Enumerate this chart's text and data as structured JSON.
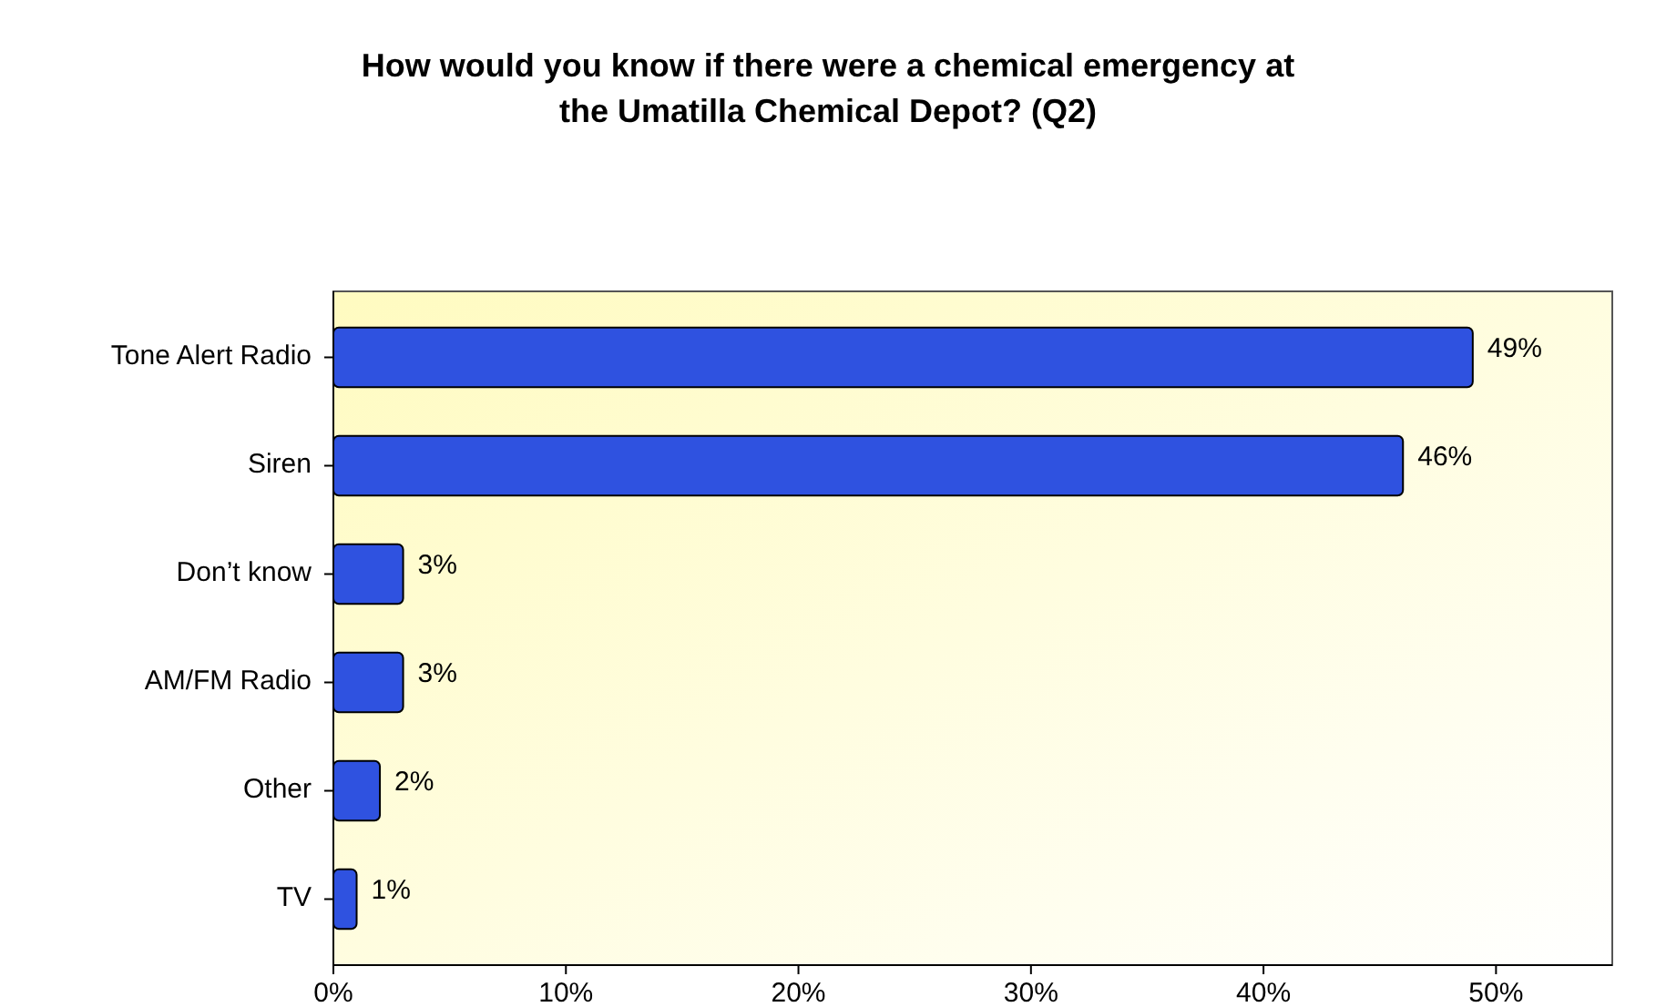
{
  "chart_data": {
    "type": "bar",
    "orientation": "horizontal",
    "title": "How would you know if there were a chemical emergency at the Umatilla Chemical Depot?  (Q2)",
    "categories": [
      "Tone Alert Radio",
      "Siren",
      "Don’t know",
      "AM/FM Radio",
      "Other",
      "TV"
    ],
    "values": [
      49,
      46,
      3,
      3,
      2,
      1
    ],
    "value_labels": [
      "49%",
      "46%",
      "3%",
      "3%",
      "2%",
      "1%"
    ],
    "color": "#2f52e0",
    "xlim": [
      0,
      55
    ],
    "xticks": [
      {
        "value": 0,
        "label": "0%"
      },
      {
        "value": 10,
        "label": "10%"
      },
      {
        "value": 20,
        "label": "20%"
      },
      {
        "value": 30,
        "label": "30%"
      },
      {
        "value": 40,
        "label": "40%"
      },
      {
        "value": 50,
        "label": "50%"
      }
    ]
  }
}
